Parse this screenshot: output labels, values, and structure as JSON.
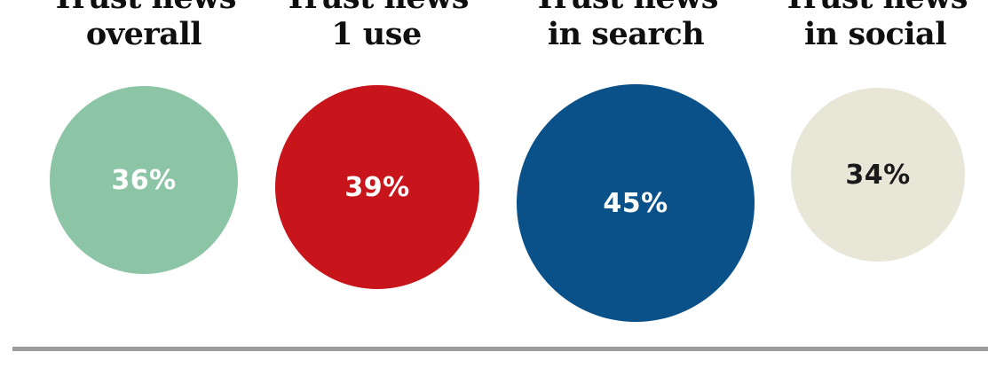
{
  "chart_data": {
    "type": "bubble",
    "items": [
      {
        "line1": "Trust news",
        "line2": "overall",
        "label": "36%",
        "value": 36,
        "color": "#8cc5a5",
        "text_color": "#ffffff"
      },
      {
        "line1": "Trust news",
        "line2": "1 use",
        "label": "39%",
        "value": 39,
        "color": "#c8151b",
        "text_color": "#ffffff"
      },
      {
        "line1": "Trust news",
        "line2": "in search",
        "label": "45%",
        "value": 45,
        "color": "#0a5189",
        "text_color": "#ffffff"
      },
      {
        "line1": "Trust news",
        "line2": "in social",
        "label": "34%",
        "value": 34,
        "color": "#e8e6d6",
        "text_color": "#1a1a1a"
      }
    ]
  }
}
